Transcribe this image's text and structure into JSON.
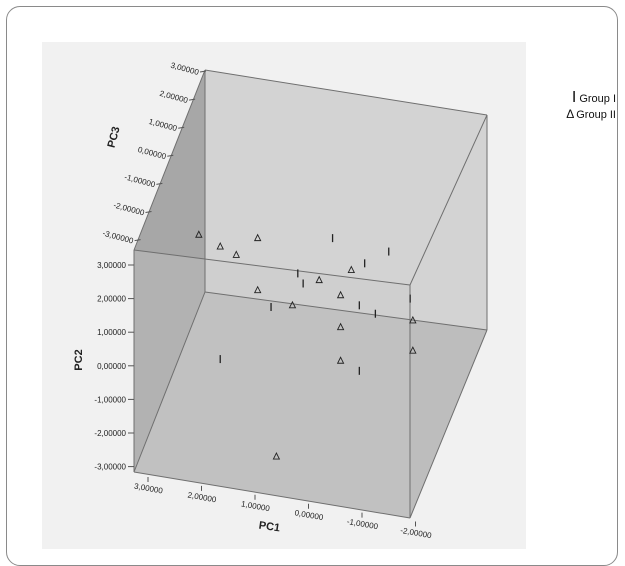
{
  "chart_data": {
    "type": "scatter",
    "projection": "3d",
    "title": "",
    "axes": {
      "x": {
        "label": "PC1",
        "ticks": [
          "3,00000",
          "2,00000",
          "1,00000",
          "0,00000",
          "-1,00000",
          "-2,00000"
        ]
      },
      "y": {
        "label": "PC2",
        "ticks": [
          "3,00000",
          "2,00000",
          "1,00000",
          "0,00000",
          "-1,00000",
          "-2,00000",
          "-3,00000"
        ]
      },
      "z": {
        "label": "PC3",
        "ticks": [
          "3,00000",
          "2,00000",
          "1,00000",
          "0,00000",
          "-1,00000",
          "-2,00000",
          "-3,00000"
        ]
      }
    },
    "legend": {
      "placement": "top-right",
      "entries": [
        {
          "symbol": "I",
          "label": "Group I"
        },
        {
          "symbol": "Δ",
          "label": "Group II"
        }
      ]
    },
    "series": [
      {
        "name": "Group I",
        "marker": "bar",
        "points": [
          {
            "screen_x": 0.2,
            "screen_y": 2.75
          },
          {
            "screen_x": -0.45,
            "screen_y": 3.8
          },
          {
            "screen_x": -1.5,
            "screen_y": 3.4
          },
          {
            "screen_x": -1.05,
            "screen_y": 3.05
          },
          {
            "screen_x": 0.1,
            "screen_y": 2.45
          },
          {
            "screen_x": 0.7,
            "screen_y": 1.75
          },
          {
            "screen_x": -0.95,
            "screen_y": 1.8
          },
          {
            "screen_x": -1.25,
            "screen_y": 1.55
          },
          {
            "screen_x": -1.9,
            "screen_y": 2.0
          },
          {
            "screen_x": 1.65,
            "screen_y": 0.2
          },
          {
            "screen_x": -0.95,
            "screen_y": -0.15
          }
        ]
      },
      {
        "name": "Group II",
        "marker": "triangle",
        "points": [
          {
            "screen_x": 2.05,
            "screen_y": 3.9
          },
          {
            "screen_x": 1.65,
            "screen_y": 3.55
          },
          {
            "screen_x": 0.95,
            "screen_y": 3.8
          },
          {
            "screen_x": 1.35,
            "screen_y": 3.3
          },
          {
            "screen_x": -0.8,
            "screen_y": 2.85
          },
          {
            "screen_x": -0.2,
            "screen_y": 2.55
          },
          {
            "screen_x": 0.95,
            "screen_y": 2.25
          },
          {
            "screen_x": 0.3,
            "screen_y": 1.8
          },
          {
            "screen_x": -0.6,
            "screen_y": 2.1
          },
          {
            "screen_x": -0.6,
            "screen_y": 1.15
          },
          {
            "screen_x": -1.95,
            "screen_y": 1.35
          },
          {
            "screen_x": -0.6,
            "screen_y": 0.15
          },
          {
            "screen_x": -1.95,
            "screen_y": 0.45
          },
          {
            "screen_x": 0.6,
            "screen_y": -2.7
          }
        ]
      }
    ]
  },
  "colors": {
    "box_face_left": "#a7a7a7",
    "box_face_right": "#cfcfcf",
    "box_face_top": "#bdbdbd",
    "box_edge": "#6f6f6f",
    "marker": "#222222"
  }
}
